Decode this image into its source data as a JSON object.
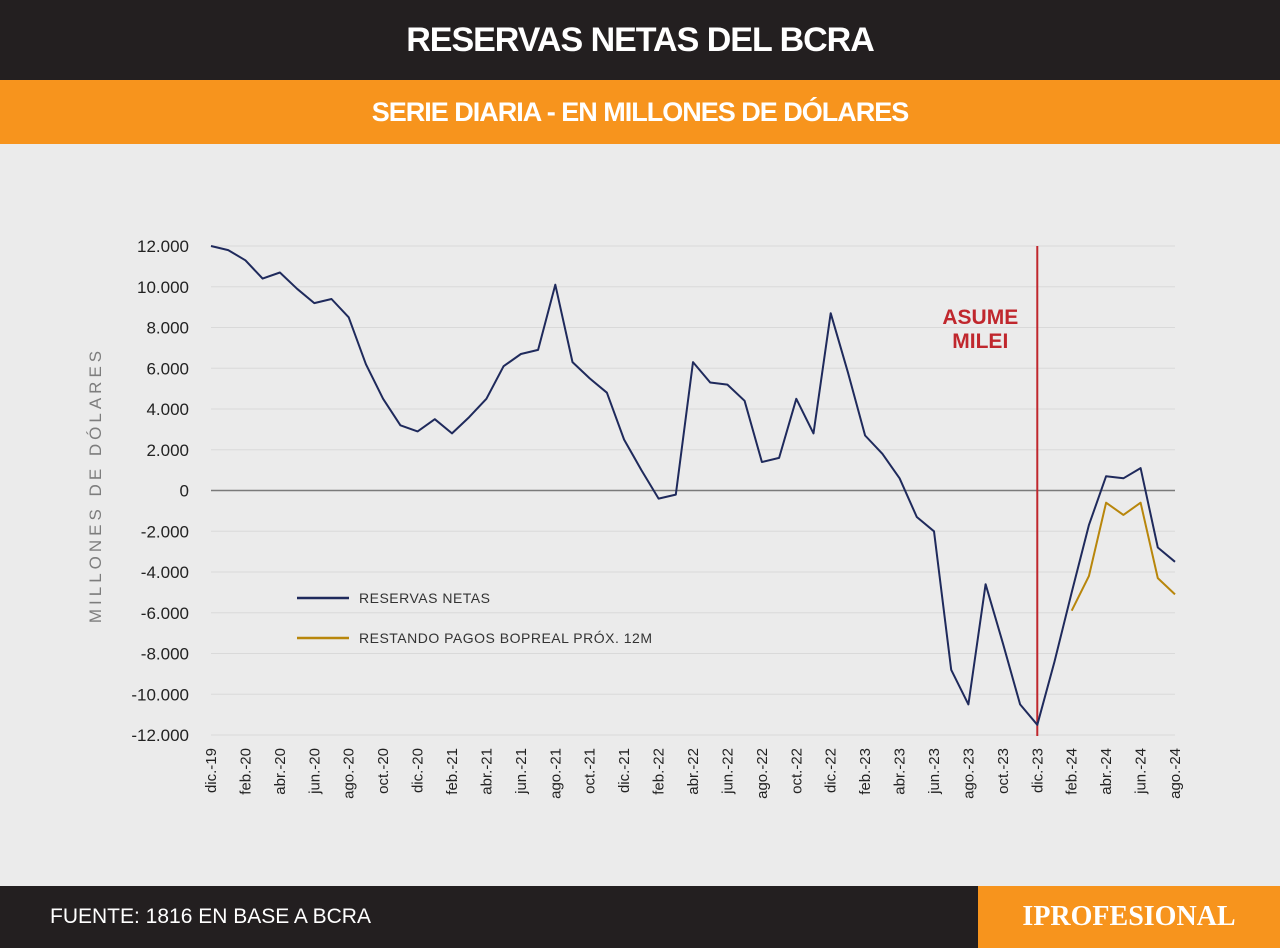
{
  "header": {
    "title": "RESERVAS NETAS DEL BCRA",
    "subtitle": "SERIE DIARIA - EN MILLONES DE DÓLARES"
  },
  "footer": {
    "source": "FUENTE: 1816 EN BASE A BCRA",
    "brand": "IPROFESIONAL"
  },
  "colors": {
    "header_bg": "#231f20",
    "accent": "#f7941d",
    "series_netas": "#1f2a5c",
    "series_bopreal": "#b8860b",
    "milei_line": "#c0272d"
  },
  "chart_data": {
    "type": "line",
    "ylabel": "MILLONES DE DÓLARES",
    "ylim": [
      -12000,
      12000
    ],
    "y_ticks": [
      "12.000",
      "10.000",
      "8.000",
      "6.000",
      "4.000",
      "2.000",
      "0",
      "-2.000",
      "-4.000",
      "-6.000",
      "-8.000",
      "-10.000",
      "-12.000"
    ],
    "y_tick_values": [
      12000,
      10000,
      8000,
      6000,
      4000,
      2000,
      0,
      -2000,
      -4000,
      -6000,
      -8000,
      -10000,
      -12000
    ],
    "x_ticks": [
      "dic.-19",
      "feb.-20",
      "abr.-20",
      "jun.-20",
      "ago.-20",
      "oct.-20",
      "dic.-20",
      "feb.-21",
      "abr.-21",
      "jun.-21",
      "ago.-21",
      "oct.-21",
      "dic.-21",
      "feb.-22",
      "abr.-22",
      "jun.-22",
      "ago.-22",
      "oct.-22",
      "dic.-22",
      "feb.-23",
      "abr.-23",
      "jun.-23",
      "ago.-23",
      "oct.-23",
      "dic.-23",
      "feb.-24",
      "abr.-24",
      "jun.-24",
      "ago.-24"
    ],
    "xlim": [
      "2019-12",
      "2024-08"
    ],
    "grid": true,
    "legend_position": "lower-left",
    "annotation": {
      "text_line1": "ASUME",
      "text_line2": "MILEI",
      "x": "2023-12"
    },
    "series": [
      {
        "name": "RESERVAS NETAS",
        "x": [
          "2019-12",
          "2020-01",
          "2020-02",
          "2020-03",
          "2020-04",
          "2020-05",
          "2020-06",
          "2020-07",
          "2020-08",
          "2020-09",
          "2020-10",
          "2020-11",
          "2020-12",
          "2021-01",
          "2021-02",
          "2021-03",
          "2021-04",
          "2021-05",
          "2021-06",
          "2021-07",
          "2021-08",
          "2021-09",
          "2021-10",
          "2021-11",
          "2021-12",
          "2022-01",
          "2022-02",
          "2022-03",
          "2022-04",
          "2022-05",
          "2022-06",
          "2022-07",
          "2022-08",
          "2022-09",
          "2022-10",
          "2022-11",
          "2022-12",
          "2023-01",
          "2023-02",
          "2023-03",
          "2023-04",
          "2023-05",
          "2023-06",
          "2023-07",
          "2023-08",
          "2023-09",
          "2023-10",
          "2023-11",
          "2023-12",
          "2024-01",
          "2024-02",
          "2024-03",
          "2024-04",
          "2024-05",
          "2024-06",
          "2024-07",
          "2024-08"
        ],
        "values": [
          12000,
          11800,
          11300,
          10400,
          10700,
          9900,
          9200,
          9400,
          8500,
          6200,
          4500,
          3200,
          2900,
          3500,
          2800,
          3600,
          4500,
          6100,
          6700,
          6900,
          10100,
          6300,
          5500,
          4800,
          2500,
          1000,
          -400,
          -200,
          6300,
          5300,
          5200,
          4400,
          1400,
          1600,
          4500,
          2800,
          8700,
          5800,
          2700,
          1800,
          600,
          -1300,
          -2000,
          -8800,
          -10500,
          -4600,
          -7500,
          -10500,
          -11500,
          -8400,
          -5000,
          -1700,
          700,
          600,
          1100,
          -2800,
          -3500
        ]
      },
      {
        "name": "RESTANDO PAGOS BOPREAL PRÓX. 12M",
        "x": [
          "2024-02",
          "2024-03",
          "2024-04",
          "2024-05",
          "2024-06",
          "2024-07",
          "2024-08"
        ],
        "values": [
          -5900,
          -4200,
          -600,
          -1200,
          -600,
          -4300,
          -5100
        ]
      }
    ]
  }
}
